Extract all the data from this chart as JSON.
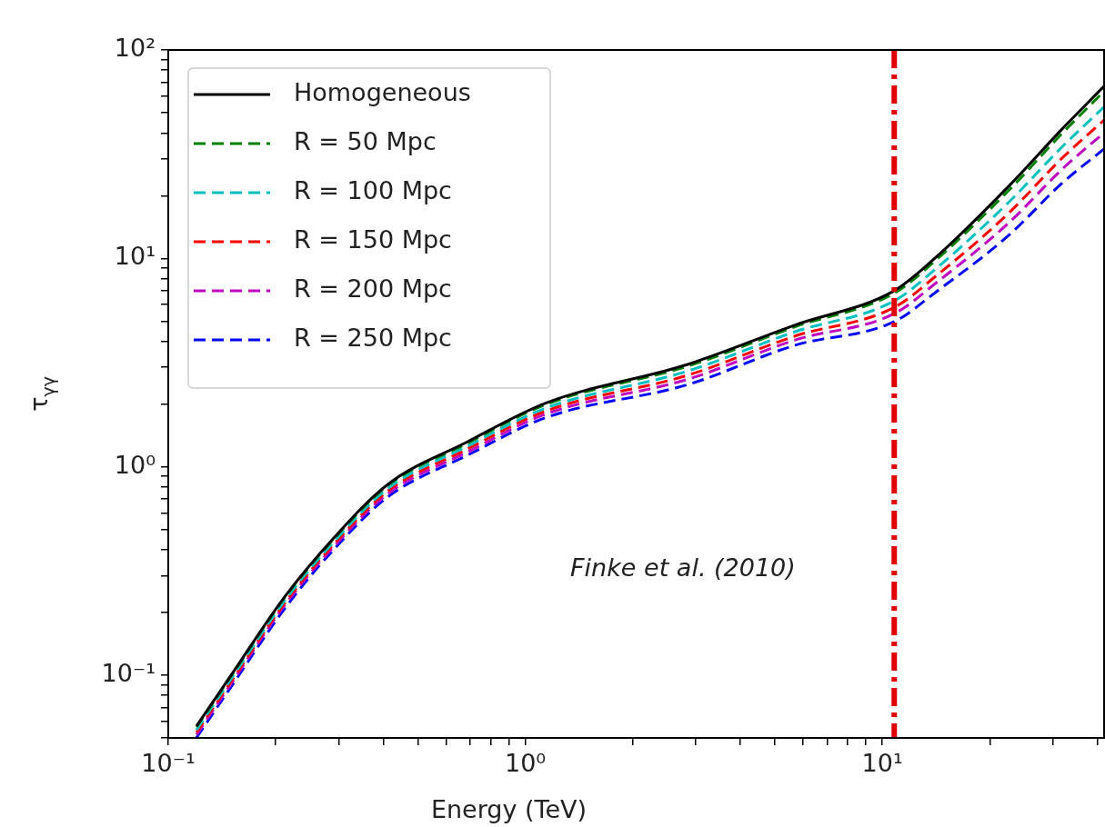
{
  "chart_data": {
    "type": "line",
    "xlabel": "Energy (TeV)",
    "ylabel": "τ$_{γγ}$",
    "log": "xy",
    "grid": false,
    "legend": "top left",
    "marker": "none",
    "xlim": [
      0.1,
      41.8
    ],
    "ylim": [
      0.05,
      100
    ],
    "xticks": [
      {
        "value": 0.1,
        "label": "10⁻¹"
      },
      {
        "value": 0.2,
        "label": null
      },
      {
        "value": 0.3,
        "label": null
      },
      {
        "value": 0.4,
        "label": null
      },
      {
        "value": 0.5,
        "label": null
      },
      {
        "value": 0.6,
        "label": null
      },
      {
        "value": 0.7,
        "label": null
      },
      {
        "value": 0.8,
        "label": null
      },
      {
        "value": 0.9,
        "label": null
      },
      {
        "value": 1,
        "label": "10⁰"
      },
      {
        "value": 2,
        "label": null
      },
      {
        "value": 3,
        "label": null
      },
      {
        "value": 4,
        "label": null
      },
      {
        "value": 5,
        "label": null
      },
      {
        "value": 6,
        "label": null
      },
      {
        "value": 7,
        "label": null
      },
      {
        "value": 8,
        "label": null
      },
      {
        "value": 9,
        "label": null
      },
      {
        "value": 10,
        "label": "10¹"
      },
      {
        "value": 20,
        "label": null
      },
      {
        "value": 30,
        "label": null
      },
      {
        "value": 40,
        "label": null
      }
    ],
    "yticks": [
      {
        "value": 0.05,
        "label": null
      },
      {
        "value": 0.06,
        "label": null
      },
      {
        "value": 0.07,
        "label": null
      },
      {
        "value": 0.08,
        "label": null
      },
      {
        "value": 0.09,
        "label": null
      },
      {
        "value": 0.1,
        "label": "10⁻¹"
      },
      {
        "value": 0.2,
        "label": null
      },
      {
        "value": 0.3,
        "label": null
      },
      {
        "value": 0.4,
        "label": null
      },
      {
        "value": 0.5,
        "label": null
      },
      {
        "value": 0.6,
        "label": null
      },
      {
        "value": 0.7,
        "label": null
      },
      {
        "value": 0.8,
        "label": null
      },
      {
        "value": 0.9,
        "label": null
      },
      {
        "value": 1,
        "label": "10⁰"
      },
      {
        "value": 2,
        "label": null
      },
      {
        "value": 3,
        "label": null
      },
      {
        "value": 4,
        "label": null
      },
      {
        "value": 5,
        "label": null
      },
      {
        "value": 6,
        "label": null
      },
      {
        "value": 7,
        "label": null
      },
      {
        "value": 8,
        "label": null
      },
      {
        "value": 9,
        "label": null
      },
      {
        "value": 10,
        "label": "10¹"
      },
      {
        "value": 20,
        "label": null
      },
      {
        "value": 30,
        "label": null
      },
      {
        "value": 40,
        "label": null
      },
      {
        "value": 50,
        "label": null
      },
      {
        "value": 60,
        "label": null
      },
      {
        "value": 70,
        "label": null
      },
      {
        "value": 80,
        "label": null
      },
      {
        "value": 90,
        "label": null
      },
      {
        "value": 100,
        "label": "10²"
      }
    ],
    "x": [
      0.12,
      0.15,
      0.212,
      0.29,
      0.413,
      0.684,
      1.14,
      2.85,
      5.7,
      10.8,
      14.2,
      22.6,
      31.9,
      41.8
    ],
    "series": [
      {
        "name": "Homogeneous",
        "color": "#000000",
        "line_style": "solid",
        "values": [
          0.057,
          0.1,
          0.238,
          0.453,
          0.826,
          1.31,
          2.02,
          3.1,
          4.79,
          7.0,
          10.2,
          22.2,
          41.8,
          67
        ]
      },
      {
        "name": "R = 50 Mpc",
        "color": "#008000",
        "line_style": "dashed",
        "values": [
          0.0564,
          0.099,
          0.236,
          0.448,
          0.817,
          1.29,
          1.99,
          3.04,
          4.7,
          6.81,
          9.89,
          21.2,
          39.8,
          63.4
        ]
      },
      {
        "name": "R = 100 Mpc",
        "color": "#00bfbf",
        "line_style": "dashed",
        "values": [
          0.0547,
          0.0959,
          0.228,
          0.434,
          0.789,
          1.25,
          1.91,
          2.88,
          4.45,
          6.25,
          8.98,
          18.6,
          34.3,
          53.3
        ]
      },
      {
        "name": "R = 150 Mpc",
        "color": "#ff0000",
        "line_style": "dashed",
        "values": [
          0.0532,
          0.0933,
          0.222,
          0.423,
          0.767,
          1.21,
          1.85,
          2.75,
          4.24,
          5.82,
          8.28,
          16.5,
          30.3,
          46.1
        ]
      },
      {
        "name": "R = 200 Mpc",
        "color": "#bf00bf",
        "line_style": "dashed",
        "values": [
          0.0519,
          0.091,
          0.217,
          0.412,
          0.745,
          1.17,
          1.79,
          2.63,
          4.06,
          5.43,
          7.67,
          14.8,
          26.8,
          40.1
        ]
      },
      {
        "name": "R = 250 Mpc",
        "color": "#0000ff",
        "line_style": "dashed",
        "values": [
          0.0502,
          0.088,
          0.209,
          0.399,
          0.719,
          1.13,
          1.72,
          2.48,
          3.83,
          4.97,
          6.94,
          12.9,
          23.0,
          33.5
        ]
      }
    ],
    "ref_lines": [
      {
        "axis": "x",
        "value": 10.8,
        "color": "#e00000",
        "line_style": "dashdot"
      }
    ],
    "annotations": [
      "Finke et al. (2010)"
    ]
  }
}
